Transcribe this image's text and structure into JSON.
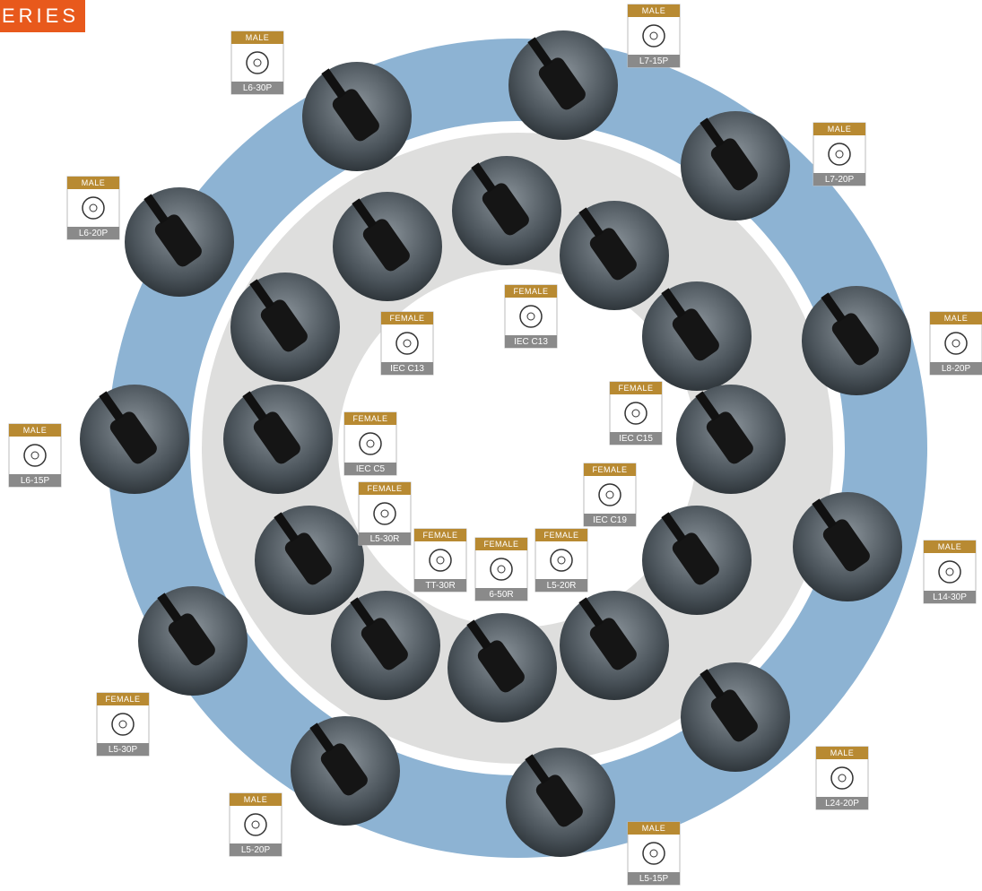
{
  "header": {
    "title": "ERIES"
  },
  "outer_ring": [
    {
      "gender": "MALE",
      "model": "L7-15P"
    },
    {
      "gender": "MALE",
      "model": "L6-30P"
    },
    {
      "gender": "MALE",
      "model": "L7-20P"
    },
    {
      "gender": "MALE",
      "model": "L6-20P"
    },
    {
      "gender": "MALE",
      "model": "L8-20P"
    },
    {
      "gender": "MALE",
      "model": "L6-15P"
    },
    {
      "gender": "MALE",
      "model": "L14-30P"
    },
    {
      "gender": "FEMALE",
      "model": "L5-30P"
    },
    {
      "gender": "MALE",
      "model": "L24-20P"
    },
    {
      "gender": "MALE",
      "model": "L5-20P"
    },
    {
      "gender": "MALE",
      "model": "L5-15P"
    }
  ],
  "inner_ring": [
    {
      "gender": "FEMALE",
      "model": "IEC C13"
    },
    {
      "gender": "FEMALE",
      "model": "IEC C13"
    },
    {
      "gender": "FEMALE",
      "model": "IEC C15"
    },
    {
      "gender": "FEMALE",
      "model": "IEC C5"
    },
    {
      "gender": "FEMALE",
      "model": "IEC C19"
    },
    {
      "gender": "FEMALE",
      "model": "L5-30R"
    },
    {
      "gender": "FEMALE",
      "model": "TT-30R"
    },
    {
      "gender": "FEMALE",
      "model": "6-50R"
    },
    {
      "gender": "FEMALE",
      "model": "L5-20R"
    }
  ]
}
